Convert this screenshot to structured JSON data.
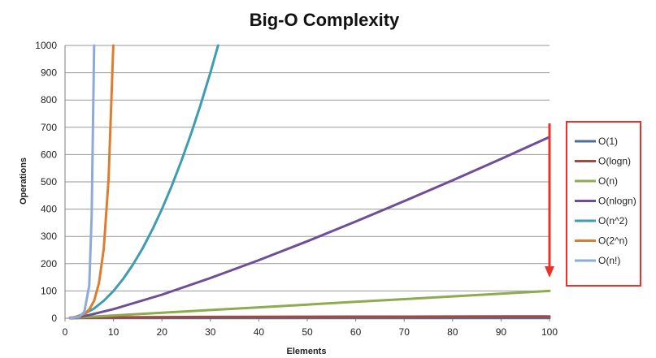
{
  "chart_data": {
    "type": "line",
    "title": "Big-O Complexity",
    "xlabel": "Elements",
    "ylabel": "Operations",
    "xlim": [
      0,
      100
    ],
    "ylim": [
      0,
      1000
    ],
    "x_ticks": [
      0,
      10,
      20,
      30,
      40,
      50,
      60,
      70,
      80,
      90,
      100
    ],
    "y_ticks": [
      0,
      100,
      200,
      300,
      400,
      500,
      600,
      700,
      800,
      900,
      1000
    ],
    "grid": "horizontal",
    "legend_position": "right",
    "series": [
      {
        "name": "O(1)",
        "color": "#4F6E95",
        "x": [
          1,
          100
        ],
        "y": [
          1,
          1
        ]
      },
      {
        "name": "O(logn)",
        "color": "#A9473F",
        "x": [
          1,
          2,
          5,
          10,
          20,
          30,
          40,
          50,
          60,
          70,
          80,
          90,
          100
        ],
        "y": [
          0,
          1,
          2.3,
          3.3,
          4.3,
          4.9,
          5.3,
          5.6,
          5.9,
          6.1,
          6.3,
          6.5,
          6.6
        ]
      },
      {
        "name": "O(n)",
        "color": "#8DAC4F",
        "x": [
          1,
          10,
          20,
          30,
          40,
          50,
          60,
          70,
          80,
          90,
          100
        ],
        "y": [
          1,
          10,
          20,
          30,
          40,
          50,
          60,
          70,
          80,
          90,
          100
        ]
      },
      {
        "name": "O(nlogn)",
        "color": "#6F4E98",
        "x": [
          1,
          2,
          5,
          10,
          20,
          30,
          40,
          50,
          60,
          70,
          80,
          90,
          100
        ],
        "y": [
          0,
          2,
          11.6,
          33.2,
          86.4,
          147.2,
          212.9,
          282.2,
          354.4,
          429.1,
          505.8,
          584.2,
          664.4
        ]
      },
      {
        "name": "O(n^2)",
        "color": "#3E9DB0",
        "x": [
          1,
          2,
          4,
          6,
          8,
          10,
          12,
          14,
          16,
          18,
          20,
          22,
          24,
          26,
          28,
          30,
          31.6
        ],
        "y": [
          1,
          4,
          16,
          36,
          64,
          100,
          144,
          196,
          256,
          324,
          400,
          484,
          576,
          676,
          784,
          900,
          1000
        ]
      },
      {
        "name": "O(2^n)",
        "color": "#E07C2F",
        "x": [
          1,
          2,
          3,
          4,
          5,
          6,
          7,
          8,
          9,
          9.97
        ],
        "y": [
          2,
          4,
          8,
          16,
          32,
          64,
          128,
          256,
          512,
          1000
        ]
      },
      {
        "name": "O(n!)",
        "color": "#8EAAD8",
        "x": [
          1,
          2,
          3,
          4,
          5,
          5.5,
          6
        ],
        "y": [
          1,
          2,
          6,
          24,
          120,
          380,
          1000
        ]
      }
    ]
  },
  "annotation": {
    "arrow_color": "#E8332A",
    "box_color": "#E8332A"
  }
}
